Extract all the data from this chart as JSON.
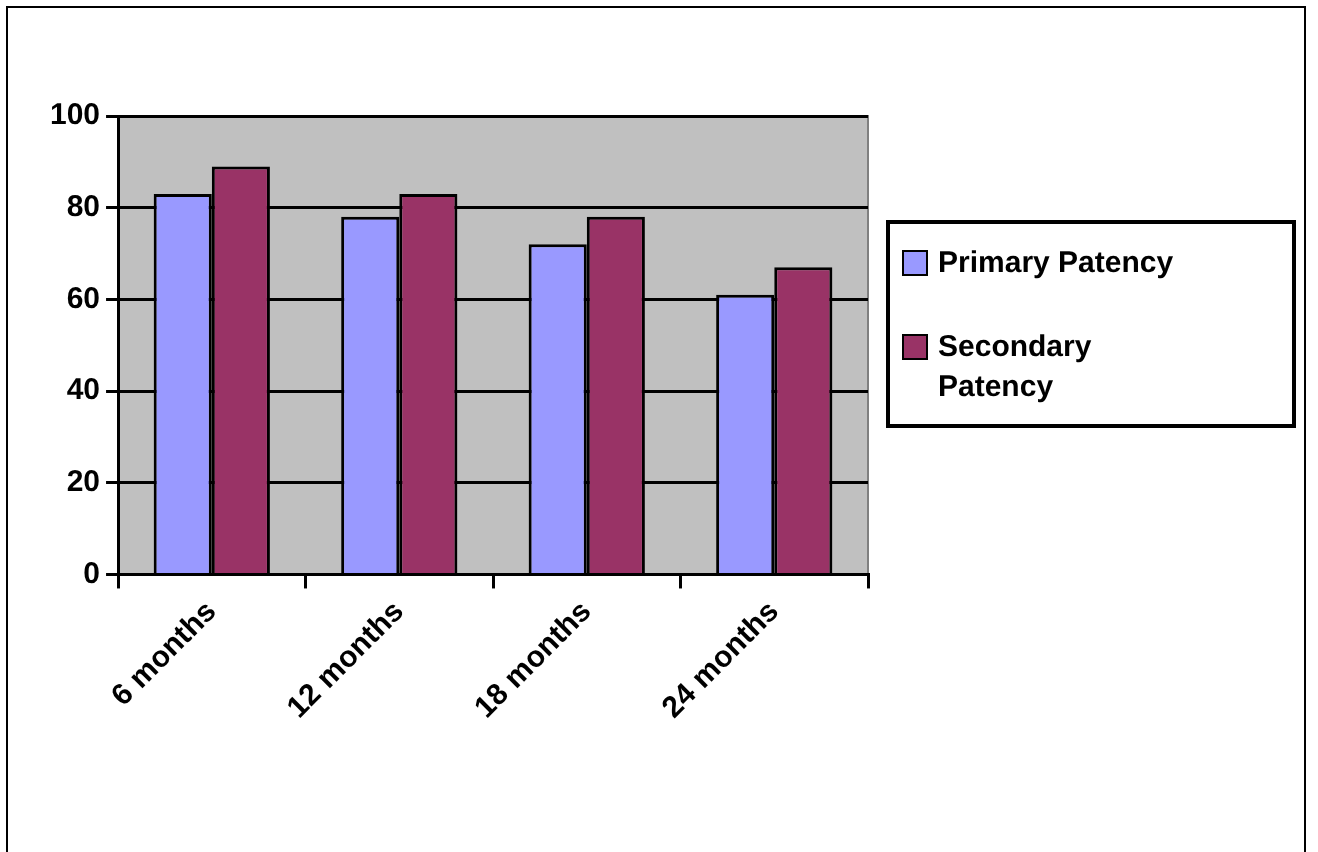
{
  "chart_data": {
    "type": "bar",
    "categories": [
      "6 months",
      "12 months",
      "18 months",
      "24 months"
    ],
    "series": [
      {
        "name": "Primary Patency",
        "color": "#9999ff",
        "values": [
          83,
          78,
          72,
          61
        ]
      },
      {
        "name": "Secondary Patency",
        "color": "#993366",
        "values": [
          89,
          83,
          78,
          67
        ]
      }
    ],
    "ylim": [
      0,
      100
    ],
    "yticks": [
      0,
      20,
      40,
      60,
      80,
      100
    ],
    "grid": "y",
    "legend": "right"
  }
}
